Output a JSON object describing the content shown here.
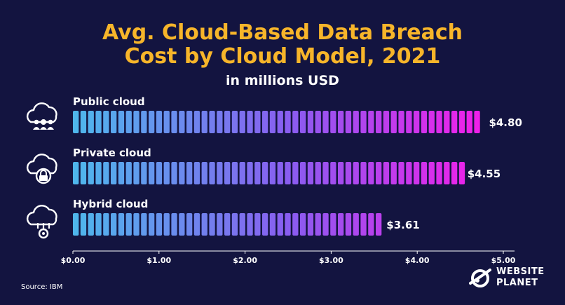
{
  "header": {
    "title_line1": "Avg. Cloud-Based Data Breach",
    "title_line2": "Cost by Cloud Model, 2021",
    "subtitle": "in millions USD"
  },
  "footer": {
    "source": "Source: IBM",
    "logo_line1": "WEBSITE",
    "logo_line2": "PLANET"
  },
  "colors": {
    "background": "#131440",
    "title": "#f7b52a",
    "bar_start": "#4fb6ec",
    "bar_mid": "#8a5cf0",
    "bar_end": "#ff17e8"
  },
  "icons": [
    "cloud-people-icon",
    "cloud-lock-icon",
    "cloud-gear-icon"
  ],
  "chart_data": {
    "type": "bar",
    "orientation": "horizontal",
    "title": "Avg. Cloud-Based Data Breach Cost by Cloud Model, 2021",
    "subtitle": "in millions USD",
    "categories": [
      "Public cloud",
      "Private cloud",
      "Hybrid cloud"
    ],
    "values": [
      4.8,
      4.55,
      3.61
    ],
    "value_labels": [
      "$4.80",
      "$4.55",
      "$3.61"
    ],
    "xlim": [
      0,
      5
    ],
    "xticks": [
      0,
      1,
      2,
      3,
      4,
      5
    ],
    "xtick_labels": [
      "$0.00",
      "$1.00",
      "$2.00",
      "$3.00",
      "$4.00",
      "$5.00"
    ],
    "grid": false
  }
}
